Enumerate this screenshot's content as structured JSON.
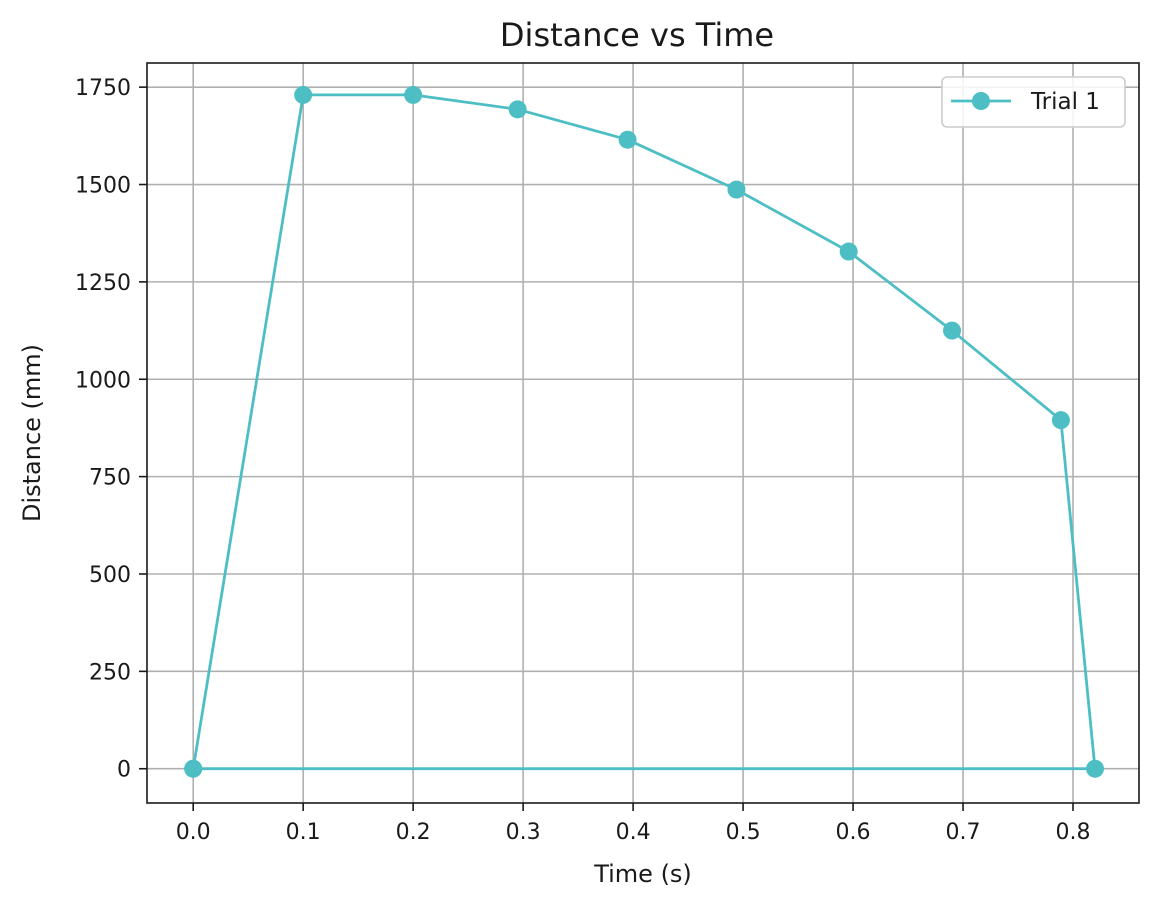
{
  "chart_data": {
    "type": "line",
    "title": "Distance vs Time",
    "xlabel": "Time (s)",
    "ylabel": "Distance (mm)",
    "xlim": [
      -0.042,
      0.86
    ],
    "ylim": [
      -88,
      1812
    ],
    "xticks": [
      0.0,
      0.1,
      0.2,
      0.3,
      0.4,
      0.5,
      0.6,
      0.7,
      0.8
    ],
    "xtick_labels": [
      "0.0",
      "0.1",
      "0.2",
      "0.3",
      "0.4",
      "0.5",
      "0.6",
      "0.7",
      "0.8"
    ],
    "yticks": [
      0,
      250,
      500,
      750,
      1000,
      1250,
      1500,
      1750
    ],
    "ytick_labels": [
      "0",
      "250",
      "500",
      "750",
      "1000",
      "1250",
      "1500",
      "1750"
    ],
    "grid": true,
    "legend_position": "top-right",
    "series": [
      {
        "name": "Trial 1",
        "color": "#4dbfc4",
        "marker": "circle",
        "x": [
          0.0,
          0.1,
          0.2,
          0.295,
          0.395,
          0.494,
          0.596,
          0.69,
          0.789,
          0.82,
          0.0
        ],
        "y": [
          0,
          1730,
          1730,
          1693,
          1615,
          1487,
          1328,
          1125,
          895,
          0,
          0
        ]
      }
    ]
  }
}
